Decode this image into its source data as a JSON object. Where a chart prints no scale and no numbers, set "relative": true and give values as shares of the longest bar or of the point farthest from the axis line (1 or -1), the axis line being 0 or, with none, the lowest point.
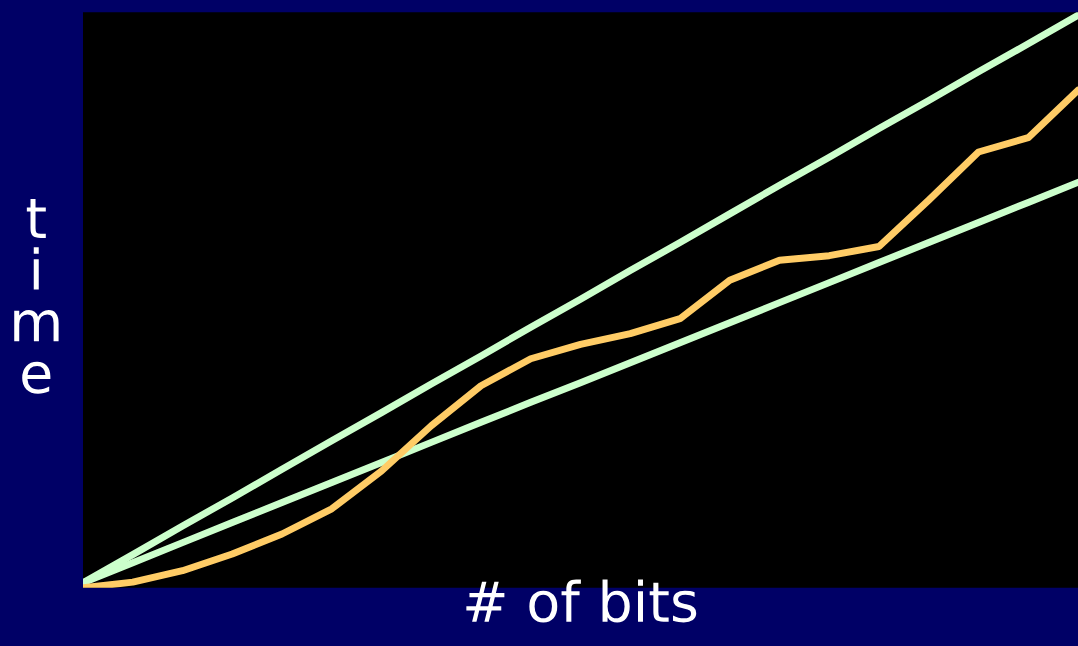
{
  "chart_data": {
    "type": "line",
    "relative": true,
    "xlabel": "# of bits",
    "ylabel": "time",
    "categories": [
      null,
      null,
      null,
      null,
      null,
      null,
      null,
      null,
      null,
      null,
      null,
      null,
      null,
      null,
      null,
      null,
      null,
      null,
      null,
      null,
      null
    ],
    "series": [
      {
        "color": "#ccffcc",
        "values": [
          0.009,
          0.058,
          0.108,
          0.157,
          0.207,
          0.257,
          0.306,
          0.356,
          0.405,
          0.455,
          0.504,
          0.554,
          0.603,
          0.653,
          0.703,
          0.752,
          0.802,
          0.851,
          0.901,
          0.95,
          1
        ]
      },
      {
        "color": "#ccffcc",
        "values": [
          0.009,
          0.044,
          0.079,
          0.114,
          0.149,
          0.184,
          0.219,
          0.254,
          0.289,
          0.324,
          0.358,
          0.393,
          0.428,
          0.463,
          0.498,
          0.533,
          0.568,
          0.603,
          0.638,
          0.673,
          0.708
        ]
      },
      {
        "color": "#ffcc66",
        "values": [
          0,
          0.01,
          0.03,
          0.059,
          0.094,
          0.138,
          0.204,
          0.283,
          0.353,
          0.4,
          0.425,
          0.444,
          0.47,
          0.537,
          0.572,
          0.58,
          0.596,
          0.677,
          0.761,
          0.786,
          0.869
        ]
      }
    ],
    "grid": false
  }
}
